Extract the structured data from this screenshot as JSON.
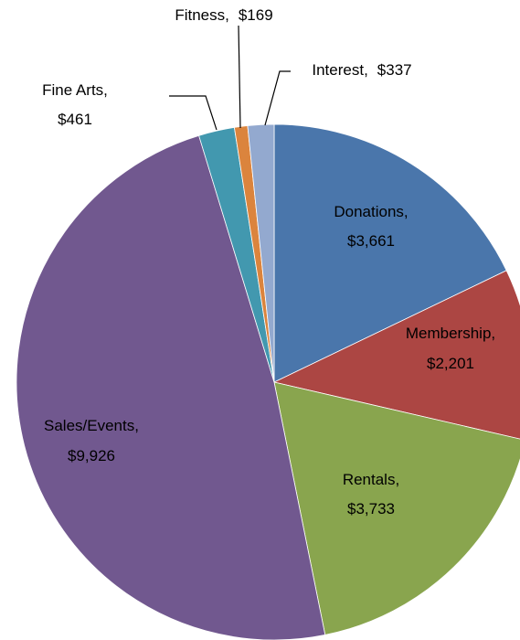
{
  "chart_data": {
    "type": "pie",
    "categories": [
      "Donations",
      "Membership",
      "Rentals",
      "Sales/Events",
      "Fine Arts",
      "Fitness",
      "Interest"
    ],
    "values": [
      3661,
      2201,
      3733,
      9926,
      461,
      169,
      337
    ],
    "value_labels": [
      "$3,661",
      "$2,201",
      "$3,733",
      "$9,926",
      "$461",
      "$169",
      "$337"
    ],
    "colors": [
      "#4a76ab",
      "#ac4643",
      "#89a54e",
      "#71588f",
      "#4298af",
      "#db843d",
      "#93a9cf"
    ]
  }
}
